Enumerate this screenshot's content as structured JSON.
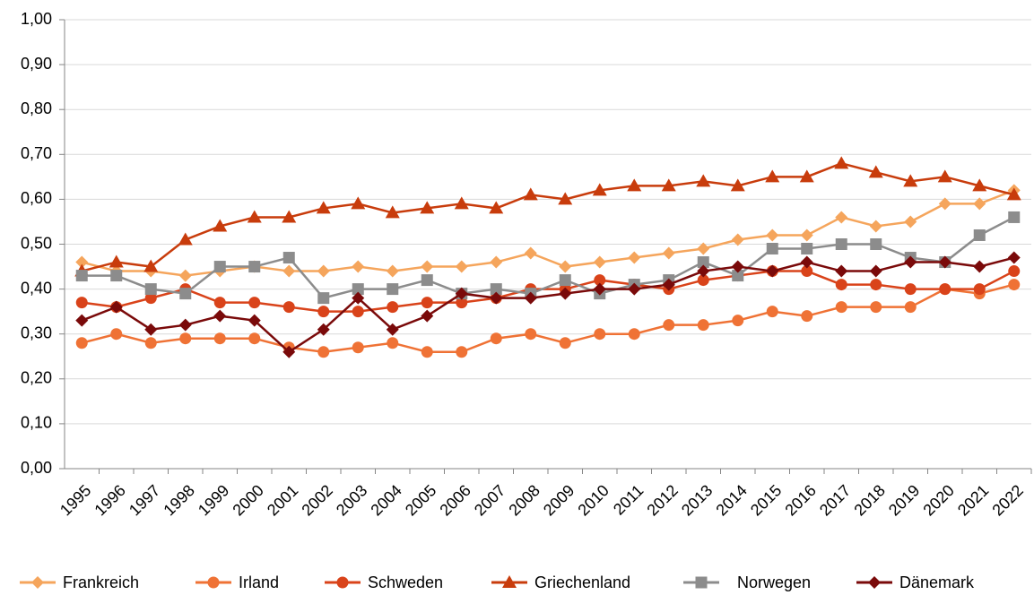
{
  "chart_data": {
    "type": "line",
    "categories": [
      "1995",
      "1996",
      "1997",
      "1998",
      "1999",
      "2000",
      "2001",
      "2002",
      "2003",
      "2004",
      "2005",
      "2006",
      "2007",
      "2008",
      "2009",
      "2010",
      "2011",
      "2012",
      "2013",
      "2014",
      "2015",
      "2016",
      "2017",
      "2018",
      "2019",
      "2020",
      "2021",
      "2022"
    ],
    "series": [
      {
        "name": "Frankreich",
        "color": "#f5a55c",
        "marker": "diamond",
        "values": [
          0.46,
          0.44,
          0.44,
          0.43,
          0.44,
          0.45,
          0.44,
          0.44,
          0.45,
          0.44,
          0.45,
          0.45,
          0.46,
          0.48,
          0.45,
          0.46,
          0.47,
          0.48,
          0.49,
          0.51,
          0.52,
          0.52,
          0.56,
          0.54,
          0.55,
          0.59,
          0.59,
          0.62
        ]
      },
      {
        "name": "Irland",
        "color": "#ef7235",
        "marker": "circle",
        "values": [
          0.28,
          0.3,
          0.28,
          0.29,
          0.29,
          0.29,
          0.27,
          0.26,
          0.27,
          0.28,
          0.26,
          0.26,
          0.29,
          0.3,
          0.28,
          0.3,
          0.3,
          0.32,
          0.32,
          0.33,
          0.35,
          0.34,
          0.36,
          0.36,
          0.36,
          0.4,
          0.39,
          0.41
        ]
      },
      {
        "name": "Schweden",
        "color": "#d9431a",
        "marker": "circle",
        "values": [
          0.37,
          0.36,
          0.38,
          0.4,
          0.37,
          0.37,
          0.36,
          0.35,
          0.35,
          0.36,
          0.37,
          0.37,
          0.38,
          0.4,
          0.4,
          0.42,
          0.41,
          0.4,
          0.42,
          0.43,
          0.44,
          0.44,
          0.41,
          0.41,
          0.4,
          0.4,
          0.4,
          0.44
        ]
      },
      {
        "name": "Griechenland",
        "color": "#c83c0c",
        "marker": "triangle",
        "values": [
          0.44,
          0.46,
          0.45,
          0.51,
          0.54,
          0.56,
          0.56,
          0.58,
          0.59,
          0.57,
          0.58,
          0.59,
          0.58,
          0.61,
          0.6,
          0.62,
          0.63,
          0.63,
          0.64,
          0.63,
          0.65,
          0.65,
          0.68,
          0.66,
          0.64,
          0.65,
          0.63,
          0.61
        ]
      },
      {
        "name": "Norwegen",
        "color": "#8c8c8c",
        "marker": "square",
        "values": [
          0.43,
          0.43,
          0.4,
          0.39,
          0.45,
          0.45,
          0.47,
          0.38,
          0.4,
          0.4,
          0.42,
          0.39,
          0.4,
          0.39,
          0.42,
          0.39,
          0.41,
          0.42,
          0.46,
          0.43,
          0.49,
          0.49,
          0.5,
          0.5,
          0.47,
          0.46,
          0.52,
          0.56
        ]
      },
      {
        "name": "Dänemark",
        "color": "#7a0a0a",
        "marker": "diamond",
        "values": [
          0.33,
          0.36,
          0.31,
          0.32,
          0.34,
          0.33,
          0.26,
          0.31,
          0.38,
          0.31,
          0.34,
          0.39,
          0.38,
          0.38,
          0.39,
          0.4,
          0.4,
          0.41,
          0.44,
          0.45,
          0.44,
          0.46,
          0.44,
          0.44,
          0.46,
          0.46,
          0.45,
          0.47
        ]
      }
    ],
    "ylim": [
      0,
      1
    ],
    "yticks": [
      {
        "value": 0,
        "label": "0,00"
      },
      {
        "value": 0.1,
        "label": "0,10"
      },
      {
        "value": 0.2,
        "label": "0,20"
      },
      {
        "value": 0.3,
        "label": "0,30"
      },
      {
        "value": 0.4,
        "label": "0,40"
      },
      {
        "value": 0.5,
        "label": "0,50"
      },
      {
        "value": 0.6,
        "label": "0,60"
      },
      {
        "value": 0.7,
        "label": "0,70"
      },
      {
        "value": 0.8,
        "label": "0,80"
      },
      {
        "value": 0.9,
        "label": "0,90"
      },
      {
        "value": 1,
        "label": "1,00"
      }
    ],
    "grid": true,
    "legend": "bottom"
  }
}
